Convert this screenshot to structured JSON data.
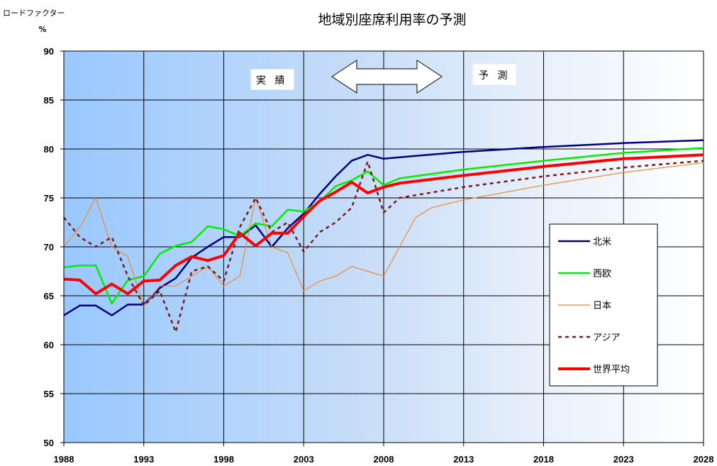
{
  "chart_data": {
    "type": "line",
    "title": "地域別座席利用率の予測",
    "ylabel": "ロードファクター",
    "yunit": "%",
    "ylim": [
      50,
      90
    ],
    "yticks": [
      50,
      55,
      60,
      65,
      70,
      75,
      80,
      85,
      90
    ],
    "xlim": [
      1988,
      2028
    ],
    "xticks": [
      1988,
      1993,
      1998,
      2003,
      2008,
      2013,
      2018,
      2023,
      2028
    ],
    "grid": true,
    "legend_position": "right",
    "annotations": {
      "actual_label": "実 績",
      "forecast_label": "予 測"
    },
    "series": [
      {
        "name": "北米",
        "color": "#000080",
        "style": "solid",
        "width": 2.5,
        "points": [
          [
            1988,
            63
          ],
          [
            1989,
            64
          ],
          [
            1990,
            64
          ],
          [
            1991,
            63
          ],
          [
            1992,
            64.1
          ],
          [
            1993,
            64.1
          ],
          [
            1994,
            65.8
          ],
          [
            1995,
            66.8
          ],
          [
            1996,
            68.9
          ],
          [
            1997,
            70
          ],
          [
            1998,
            71
          ],
          [
            1999,
            71
          ],
          [
            2000,
            72.2
          ],
          [
            2001,
            70
          ],
          [
            2002,
            71.9
          ],
          [
            2003,
            73.4
          ],
          [
            2004,
            75.4
          ],
          [
            2005,
            77.2
          ],
          [
            2006,
            78.8
          ],
          [
            2007,
            79.4
          ],
          [
            2008,
            79
          ],
          [
            2010,
            79.3
          ],
          [
            2013,
            79.7
          ],
          [
            2018,
            80.2
          ],
          [
            2023,
            80.6
          ],
          [
            2028,
            80.9
          ]
        ]
      },
      {
        "name": "西欧",
        "color": "#00ee00",
        "style": "solid",
        "width": 2.5,
        "points": [
          [
            1988,
            67.9
          ],
          [
            1989,
            68.1
          ],
          [
            1990,
            68.1
          ],
          [
            1991,
            64.2
          ],
          [
            1992,
            66.6
          ],
          [
            1993,
            67
          ],
          [
            1994,
            69.3
          ],
          [
            1995,
            70.1
          ],
          [
            1996,
            70.5
          ],
          [
            1997,
            72.1
          ],
          [
            1998,
            71.8
          ],
          [
            1999,
            71.1
          ],
          [
            2000,
            72.4
          ],
          [
            2001,
            72.1
          ],
          [
            2002,
            73.8
          ],
          [
            2003,
            73.6
          ],
          [
            2004,
            74.6
          ],
          [
            2005,
            76.2
          ],
          [
            2006,
            76.8
          ],
          [
            2007,
            77.7
          ],
          [
            2008,
            76.3
          ],
          [
            2009,
            77
          ],
          [
            2013,
            77.9
          ],
          [
            2018,
            78.8
          ],
          [
            2023,
            79.6
          ],
          [
            2028,
            80.1
          ]
        ]
      },
      {
        "name": "日本",
        "color": "#ee8833",
        "style": "solid",
        "width": 1.2,
        "points": [
          [
            1988,
            70
          ],
          [
            1989,
            72
          ],
          [
            1990,
            75
          ],
          [
            1991,
            70
          ],
          [
            1992,
            69
          ],
          [
            1993,
            64
          ],
          [
            1994,
            66
          ],
          [
            1995,
            66
          ],
          [
            1996,
            67
          ],
          [
            1997,
            68
          ],
          [
            1998,
            66
          ],
          [
            1999,
            67
          ],
          [
            2000,
            75
          ],
          [
            2001,
            70
          ],
          [
            2002,
            69.4
          ],
          [
            2003,
            65.5
          ],
          [
            2004,
            66.5
          ],
          [
            2005,
            67
          ],
          [
            2006,
            68
          ],
          [
            2007,
            67.5
          ],
          [
            2008,
            67
          ],
          [
            2009,
            70
          ],
          [
            2010,
            73
          ],
          [
            2011,
            74
          ],
          [
            2013,
            74.8
          ],
          [
            2018,
            76.3
          ],
          [
            2023,
            77.6
          ],
          [
            2028,
            78.6
          ]
        ]
      },
      {
        "name": "アジア",
        "color": "#7a1a1a",
        "style": "dashed",
        "width": 2.5,
        "points": [
          [
            1988,
            73
          ],
          [
            1989,
            71
          ],
          [
            1990,
            70
          ],
          [
            1991,
            71
          ],
          [
            1992,
            67
          ],
          [
            1993,
            64
          ],
          [
            1994,
            65.5
          ],
          [
            1995,
            61.3
          ],
          [
            1996,
            67.5
          ],
          [
            1997,
            68
          ],
          [
            1998,
            66.5
          ],
          [
            1999,
            72
          ],
          [
            2000,
            75
          ],
          [
            2001,
            71.5
          ],
          [
            2002,
            72.5
          ],
          [
            2003,
            69.5
          ],
          [
            2004,
            71.5
          ],
          [
            2005,
            72.5
          ],
          [
            2006,
            74
          ],
          [
            2007,
            78.7
          ],
          [
            2008,
            73.5
          ],
          [
            2009,
            75
          ],
          [
            2013,
            76.1
          ],
          [
            2018,
            77.2
          ],
          [
            2023,
            78.1
          ],
          [
            2028,
            78.8
          ]
        ]
      },
      {
        "name": "世界平均",
        "color": "#ff0000",
        "style": "solid",
        "width": 4,
        "points": [
          [
            1988,
            66.7
          ],
          [
            1989,
            66.6
          ],
          [
            1990,
            65.2
          ],
          [
            1991,
            66.2
          ],
          [
            1992,
            65.2
          ],
          [
            1993,
            66.5
          ],
          [
            1994,
            66.6
          ],
          [
            1995,
            68.1
          ],
          [
            1996,
            69
          ],
          [
            1997,
            68.6
          ],
          [
            1998,
            69.1
          ],
          [
            1999,
            71.4
          ],
          [
            2000,
            70.1
          ],
          [
            2001,
            71.4
          ],
          [
            2002,
            71.4
          ],
          [
            2003,
            73.1
          ],
          [
            2004,
            74.7
          ],
          [
            2005,
            75.6
          ],
          [
            2006,
            76.6
          ],
          [
            2007,
            75.5
          ],
          [
            2008,
            76.1
          ],
          [
            2009,
            76.5
          ],
          [
            2013,
            77.3
          ],
          [
            2018,
            78.2
          ],
          [
            2023,
            79
          ],
          [
            2028,
            79.4
          ]
        ]
      }
    ]
  }
}
